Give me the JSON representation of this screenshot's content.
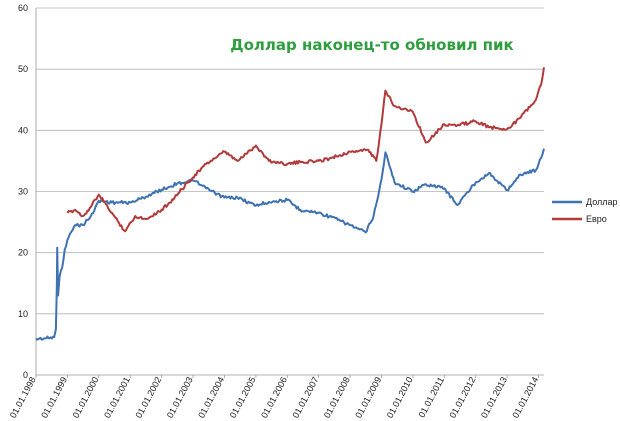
{
  "chart_data": {
    "type": "line",
    "title": "Доллар наконец-то обновил пик",
    "title_color": "#2e9e3e",
    "xlabel": "",
    "ylabel": "",
    "ylim": [
      0,
      60
    ],
    "yticks": [
      0,
      10,
      20,
      30,
      40,
      50,
      60
    ],
    "grid": "horizontal",
    "legend_position": "right",
    "xticks": [
      "01.01.1998",
      "01.01.1999",
      "01.01.2000",
      "01.01.2001",
      "01.01.2002",
      "01.01.2003",
      "01.01.2004",
      "01.01.2005",
      "01.01.2006",
      "01.01.2007",
      "01.01.2008",
      "01.01.2009",
      "01.01.2010",
      "01.01.2011",
      "01.01.2012",
      "01.01.2013",
      "01.01.2014"
    ],
    "series": [
      {
        "name": "Доллар",
        "color": "#3f72b0",
        "points": [
          [
            "1998-01-01",
            5.9
          ],
          [
            "1998-05-01",
            6.0
          ],
          [
            "1998-08-01",
            6.2
          ],
          [
            "1998-08-20",
            7.5
          ],
          [
            "1998-09-01",
            15.0
          ],
          [
            "1998-09-05",
            20.8
          ],
          [
            "1998-09-15",
            13.0
          ],
          [
            "1998-10-01",
            16.0
          ],
          [
            "1998-11-01",
            17.5
          ],
          [
            "1998-12-01",
            20.5
          ],
          [
            "1999-01-15",
            22.5
          ],
          [
            "1999-04-01",
            24.5
          ],
          [
            "1999-07-01",
            24.5
          ],
          [
            "1999-10-01",
            26.0
          ],
          [
            "2000-01-01",
            28.5
          ],
          [
            "2000-06-01",
            28.2
          ],
          [
            "2001-01-01",
            28.2
          ],
          [
            "2001-06-01",
            29.0
          ],
          [
            "2002-01-01",
            30.3
          ],
          [
            "2002-07-01",
            31.3
          ],
          [
            "2003-01-01",
            31.8
          ],
          [
            "2003-06-01",
            30.5
          ],
          [
            "2004-01-01",
            29.0
          ],
          [
            "2004-06-01",
            29.0
          ],
          [
            "2005-01-01",
            27.7
          ],
          [
            "2005-06-01",
            28.3
          ],
          [
            "2006-01-01",
            28.6
          ],
          [
            "2006-06-01",
            27.0
          ],
          [
            "2007-01-01",
            26.5
          ],
          [
            "2007-06-01",
            25.8
          ],
          [
            "2008-01-01",
            24.5
          ],
          [
            "2008-07-01",
            23.3
          ],
          [
            "2008-10-01",
            26.0
          ],
          [
            "2009-01-01",
            32.0
          ],
          [
            "2009-02-15",
            36.4
          ],
          [
            "2009-06-01",
            31.5
          ],
          [
            "2010-01-01",
            30.0
          ],
          [
            "2010-06-01",
            31.2
          ],
          [
            "2011-01-01",
            30.5
          ],
          [
            "2011-06-01",
            27.8
          ],
          [
            "2012-01-01",
            31.5
          ],
          [
            "2012-06-01",
            33.0
          ],
          [
            "2013-01-01",
            30.2
          ],
          [
            "2013-06-01",
            32.8
          ],
          [
            "2013-12-01",
            33.5
          ],
          [
            "2014-02-01",
            35.5
          ],
          [
            "2014-03-05",
            37.0
          ]
        ]
      },
      {
        "name": "Евро",
        "color": "#b33a3a",
        "points": [
          [
            "1999-01-01",
            26.5
          ],
          [
            "1999-04-01",
            27.0
          ],
          [
            "1999-07-01",
            26.0
          ],
          [
            "1999-10-01",
            27.5
          ],
          [
            "2000-01-01",
            29.5
          ],
          [
            "2000-06-01",
            26.5
          ],
          [
            "2000-11-01",
            23.5
          ],
          [
            "2001-03-01",
            26.0
          ],
          [
            "2001-07-01",
            25.5
          ],
          [
            "2002-01-01",
            27.0
          ],
          [
            "2002-06-01",
            29.0
          ],
          [
            "2002-11-01",
            31.5
          ],
          [
            "2003-06-01",
            34.5
          ],
          [
            "2004-01-01",
            36.5
          ],
          [
            "2004-06-01",
            35.0
          ],
          [
            "2005-01-01",
            37.5
          ],
          [
            "2005-06-01",
            35.0
          ],
          [
            "2006-01-01",
            34.5
          ],
          [
            "2006-06-01",
            34.8
          ],
          [
            "2007-01-01",
            35.0
          ],
          [
            "2007-06-01",
            35.5
          ],
          [
            "2008-01-01",
            36.5
          ],
          [
            "2008-08-01",
            36.8
          ],
          [
            "2008-11-01",
            35.0
          ],
          [
            "2009-01-01",
            41.0
          ],
          [
            "2009-02-15",
            46.5
          ],
          [
            "2009-06-01",
            44.0
          ],
          [
            "2010-01-01",
            43.0
          ],
          [
            "2010-06-01",
            38.0
          ],
          [
            "2011-01-01",
            41.0
          ],
          [
            "2011-06-01",
            40.8
          ],
          [
            "2012-01-01",
            41.5
          ],
          [
            "2012-06-01",
            40.5
          ],
          [
            "2013-01-01",
            40.2
          ],
          [
            "2013-06-01",
            42.0
          ],
          [
            "2013-12-01",
            45.0
          ],
          [
            "2014-02-01",
            47.5
          ],
          [
            "2014-03-05",
            50.3
          ]
        ]
      }
    ]
  }
}
